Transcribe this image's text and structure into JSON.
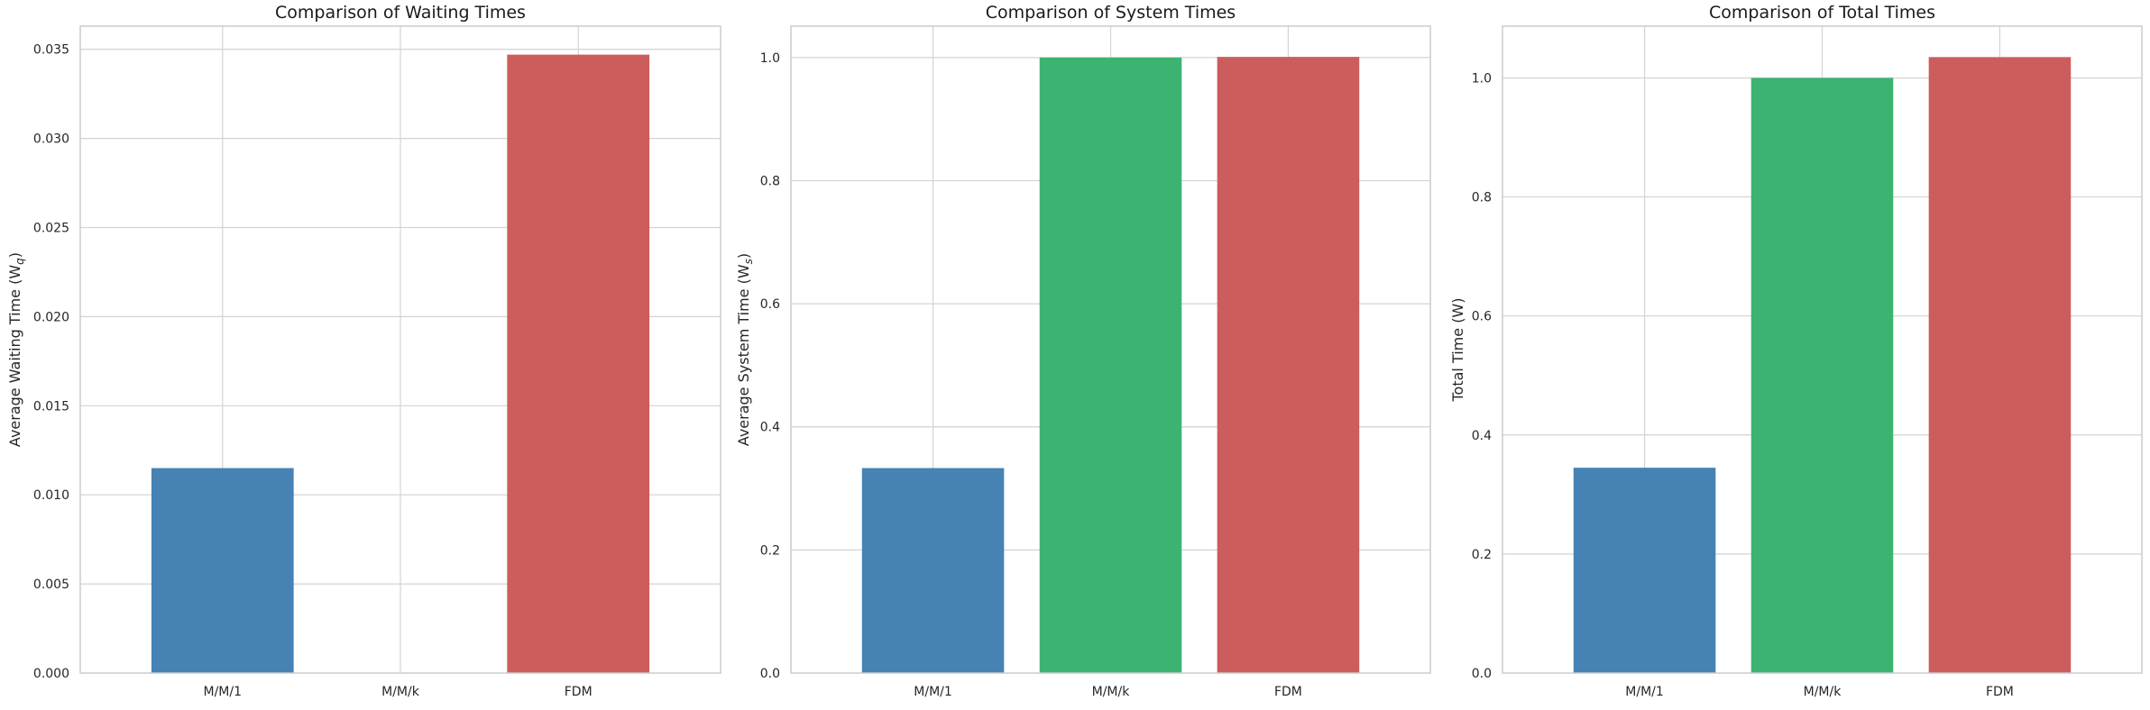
{
  "figure": {
    "charts": [
      "waiting",
      "system",
      "total"
    ]
  },
  "chart_data": [
    {
      "id": "waiting",
      "type": "bar",
      "title": "Comparison of Waiting Times",
      "xlabel": "",
      "ylabel": "Average Waiting Time (W",
      "ylabel_sub": "q",
      "ylabel_close": ")",
      "categories": [
        "M/M/1",
        "M/M/k",
        "FDM"
      ],
      "values": [
        0.0115,
        0.0,
        0.0347
      ],
      "colors": [
        "#4682b4",
        "#3cb371",
        "#cd5c5c"
      ],
      "ylim": [
        0,
        0.0363
      ],
      "yticks": [
        0.0,
        0.005,
        0.01,
        0.015,
        0.02,
        0.025,
        0.03,
        0.035
      ],
      "ytick_labels": [
        "0.000",
        "0.005",
        "0.010",
        "0.015",
        "0.020",
        "0.025",
        "0.030",
        "0.035"
      ],
      "grid": true
    },
    {
      "id": "system",
      "type": "bar",
      "title": "Comparison of System Times",
      "xlabel": "",
      "ylabel": "Average System Time (W",
      "ylabel_sub": "s",
      "ylabel_close": ")",
      "categories": [
        "M/M/1",
        "M/M/k",
        "FDM"
      ],
      "values": [
        0.333,
        1.0,
        1.001
      ],
      "colors": [
        "#4682b4",
        "#3cb371",
        "#cd5c5c"
      ],
      "ylim": [
        0,
        1.051
      ],
      "yticks": [
        0.0,
        0.2,
        0.4,
        0.6,
        0.8,
        1.0
      ],
      "ytick_labels": [
        "0.0",
        "0.2",
        "0.4",
        "0.6",
        "0.8",
        "1.0"
      ],
      "grid": true
    },
    {
      "id": "total",
      "type": "bar",
      "title": "Comparison of Total Times",
      "xlabel": "",
      "ylabel": "Total Time (W)",
      "ylabel_sub": "",
      "ylabel_close": "",
      "categories": [
        "M/M/1",
        "M/M/k",
        "FDM"
      ],
      "values": [
        0.345,
        1.0,
        1.035
      ],
      "colors": [
        "#4682b4",
        "#3cb371",
        "#cd5c5c"
      ],
      "ylim": [
        0,
        1.087
      ],
      "yticks": [
        0.0,
        0.2,
        0.4,
        0.6,
        0.8,
        1.0
      ],
      "ytick_labels": [
        "0.0",
        "0.2",
        "0.4",
        "0.6",
        "0.8",
        "1.0"
      ],
      "grid": true
    }
  ]
}
